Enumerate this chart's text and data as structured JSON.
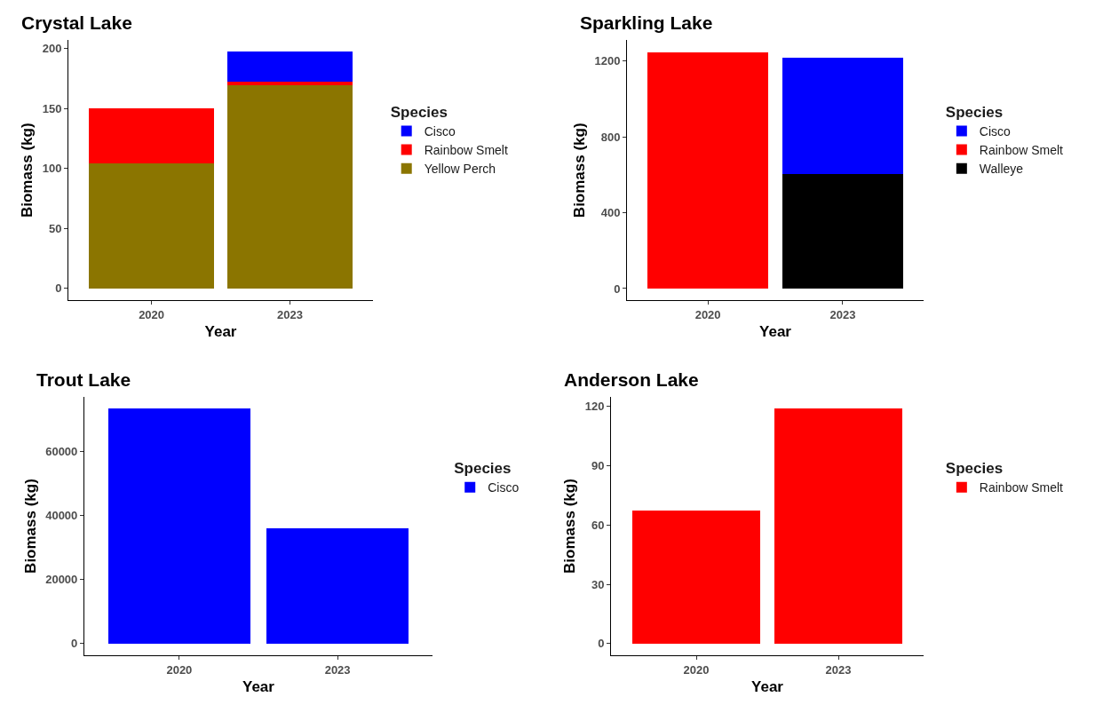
{
  "chart_data": [
    {
      "type": "bar",
      "stacked": true,
      "title": "Crystal Lake",
      "xlabel": "Year",
      "ylabel": "Biomass (kg)",
      "legend_title": "Species",
      "legend": "right",
      "categories": [
        "2020",
        "2023"
      ],
      "ylim": [
        -9.9,
        207
      ],
      "yticks": [
        0,
        50,
        100,
        150,
        200
      ],
      "series": [
        {
          "name": "Yellow Perch",
          "color": "#8b7500",
          "values": [
            104,
            169.5
          ]
        },
        {
          "name": "Rainbow Smelt",
          "color": "#ff0000",
          "values": [
            46.5,
            3
          ]
        },
        {
          "name": "Cisco",
          "color": "#0000ff",
          "values": [
            null,
            24.7
          ]
        }
      ]
    },
    {
      "type": "bar",
      "stacked": true,
      "title": "Sparkling Lake",
      "xlabel": "Year",
      "ylabel": "Biomass (kg)",
      "legend_title": "Species",
      "legend": "right",
      "categories": [
        "2020",
        "2023"
      ],
      "ylim": [
        -62,
        1309
      ],
      "yticks": [
        0,
        400,
        800,
        1200
      ],
      "series": [
        {
          "name": "Walleye",
          "color": "#000000",
          "values": [
            null,
            603
          ]
        },
        {
          "name": "Rainbow Smelt",
          "color": "#ff0000",
          "values": [
            1244,
            null
          ]
        },
        {
          "name": "Cisco",
          "color": "#0000ff",
          "values": [
            null,
            613
          ]
        }
      ]
    },
    {
      "type": "bar",
      "stacked": true,
      "title": "Trout Lake",
      "xlabel": "Year",
      "ylabel": "Biomass (kg)",
      "legend_title": "Species",
      "legend": "right",
      "categories": [
        "2020",
        "2023"
      ],
      "ylim": [
        -3670,
        77090
      ],
      "yticks": [
        0,
        20000,
        40000,
        60000
      ],
      "series": [
        {
          "name": "Cisco",
          "color": "#0000ff",
          "values": [
            73400,
            36000
          ]
        }
      ]
    },
    {
      "type": "bar",
      "stacked": true,
      "title": "Anderson Lake",
      "xlabel": "Year",
      "ylabel": "Biomass (kg)",
      "legend_title": "Species",
      "legend": "right",
      "categories": [
        "2020",
        "2023"
      ],
      "ylim": [
        -5.95,
        124.9
      ],
      "yticks": [
        0,
        30,
        60,
        90,
        120
      ],
      "series": [
        {
          "name": "Rainbow Smelt",
          "color": "#ff0000",
          "values": [
            67.2,
            119
          ]
        }
      ]
    }
  ]
}
